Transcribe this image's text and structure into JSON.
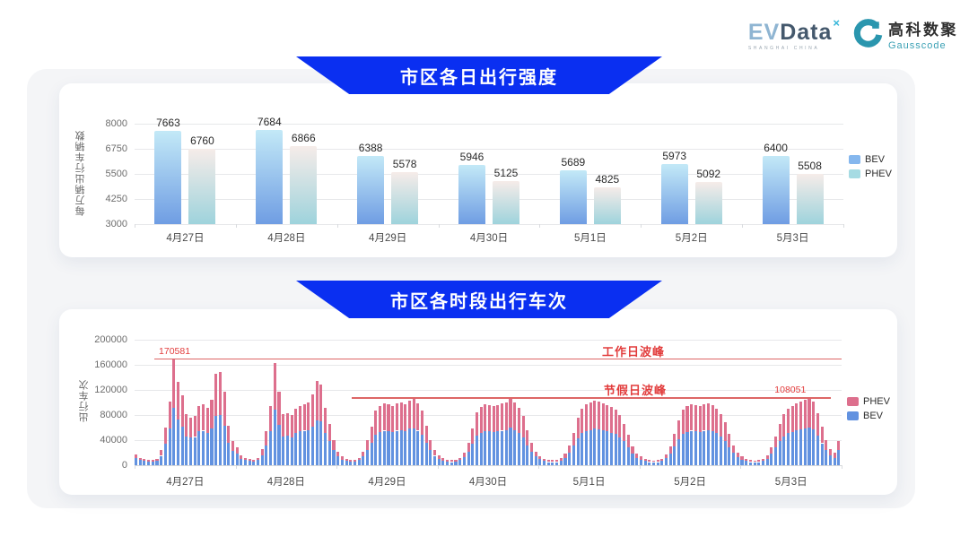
{
  "header": {
    "evdata": {
      "ev": "EV",
      "data": "Data",
      "sup": "×",
      "sub": "SHANGHAI CHINA"
    },
    "gausscode": {
      "cn": "高科数聚",
      "en": "Gausscode"
    }
  },
  "colors": {
    "banner_blue": "#0a2ff1",
    "refline_red": "#dd6666",
    "annotation_red": "#e23c3c",
    "bev_bar_blue": "#6292e0",
    "phev_bar_pink": "#dd6f8d"
  },
  "chart_data": [
    {
      "type": "bar",
      "title": "市区各日出行强度",
      "ylabel": "每万辆出行车辆数",
      "ylim": [
        3000,
        8250
      ],
      "yticks": [
        3000,
        4250,
        5500,
        6750,
        8000
      ],
      "grid": true,
      "legend_position": "right",
      "categories": [
        "4月27日",
        "4月28日",
        "4月29日",
        "4月30日",
        "5月1日",
        "5月2日",
        "5月3日"
      ],
      "series": [
        {
          "name": "BEV",
          "legend_color": "#85b7ee",
          "color_top": "#c3e9f7",
          "color_bottom": "#6f9de3",
          "values": [
            7663,
            7684,
            6388,
            5946,
            5689,
            5973,
            6400
          ]
        },
        {
          "name": "PHEV",
          "legend_color": "#a6dbe3",
          "color_top": "#f6ece9",
          "color_bottom": "#9ed3dc",
          "values": [
            6760,
            6866,
            5578,
            5125,
            4825,
            5092,
            5508
          ]
        }
      ]
    },
    {
      "type": "bar",
      "subtype": "stacked",
      "title": "市区各时段出行车次",
      "ylabel": "出行车次",
      "ylim": [
        0,
        200000
      ],
      "yticks": [
        0,
        40000,
        80000,
        120000,
        160000,
        200000
      ],
      "grid": true,
      "legend_position": "right",
      "x_day_labels": [
        "4月27日",
        "4月28日",
        "4月29日",
        "4月30日",
        "5月1日",
        "5月2日",
        "5月3日"
      ],
      "bars_per_day": 24,
      "series": [
        {
          "name": "PHEV",
          "color": "#dd6f8d",
          "values": [
            6000,
            4000,
            3000,
            2500,
            2500,
            3000,
            9000,
            25000,
            43000,
            79581,
            60000,
            50000,
            35000,
            32000,
            34000,
            41000,
            42000,
            39000,
            46000,
            67000,
            69000,
            54000,
            27000,
            15000,
            10000,
            6000,
            4000,
            3000,
            3000,
            4000,
            10000,
            23000,
            41000,
            75000,
            53000,
            36000,
            36000,
            35000,
            39000,
            41000,
            42000,
            44000,
            51000,
            62000,
            59000,
            41000,
            28000,
            15000,
            8000,
            5000,
            3000,
            3000,
            3000,
            4000,
            8000,
            16000,
            26000,
            38000,
            42000,
            44000,
            43000,
            42000,
            43000,
            44000,
            43000,
            45000,
            47000,
            44000,
            38000,
            27000,
            16000,
            9000,
            6000,
            4000,
            3000,
            3000,
            3000,
            4000,
            7000,
            14000,
            24000,
            37000,
            41000,
            43000,
            42000,
            41000,
            42000,
            43000,
            44000,
            47000,
            44000,
            40000,
            34000,
            24000,
            14000,
            8000,
            5000,
            3000,
            3000,
            3000,
            3000,
            4000,
            6000,
            12000,
            21000,
            33000,
            39000,
            43000,
            44000,
            45000,
            44000,
            43000,
            42000,
            41000,
            38000,
            35000,
            28000,
            20000,
            11000,
            6000,
            5000,
            3000,
            3000,
            2000,
            3000,
            3000,
            6000,
            11000,
            20000,
            31000,
            38000,
            42000,
            42000,
            42000,
            42000,
            42000,
            43000,
            42000,
            39000,
            36000,
            29000,
            21000,
            12000,
            7000,
            5000,
            3000,
            3000,
            2000,
            3000,
            3000,
            6000,
            10000,
            18000,
            28000,
            36000,
            39000,
            42000,
            43000,
            45000,
            46000,
            48051,
            44000,
            36000,
            27000,
            16000,
            10000,
            8000,
            14000
          ]
        },
        {
          "name": "BEV",
          "color": "#6292e0",
          "values": [
            11000,
            8000,
            7000,
            5500,
            5500,
            7000,
            15000,
            35000,
            58000,
            91000,
            73000,
            62000,
            46000,
            44000,
            45000,
            54000,
            55000,
            52000,
            58000,
            79000,
            80000,
            63000,
            36000,
            23000,
            18000,
            10000,
            8000,
            7000,
            6000,
            8000,
            16000,
            32000,
            54000,
            88000,
            64000,
            46000,
            47000,
            45000,
            51000,
            54000,
            55000,
            56000,
            62000,
            72000,
            70000,
            51000,
            38000,
            25000,
            14000,
            9000,
            7000,
            6000,
            6000,
            8000,
            14000,
            24000,
            36000,
            49000,
            53000,
            55000,
            54000,
            53000,
            55000,
            56000,
            54000,
            58000,
            59000,
            55000,
            49000,
            36000,
            24000,
            15000,
            10000,
            7000,
            6000,
            5000,
            6000,
            8000,
            13000,
            22000,
            34000,
            47000,
            52000,
            54000,
            54000,
            53000,
            54000,
            55000,
            56000,
            60000,
            56000,
            52000,
            44000,
            32000,
            22000,
            14000,
            10000,
            7000,
            5000,
            5000,
            5000,
            7000,
            12000,
            20000,
            31000,
            43000,
            51000,
            54000,
            56000,
            58000,
            57000,
            56000,
            54000,
            52000,
            50000,
            45000,
            38000,
            28000,
            19000,
            12000,
            9000,
            7000,
            5000,
            5000,
            5000,
            7000,
            11000,
            19000,
            30000,
            41000,
            50000,
            53000,
            55000,
            54000,
            53000,
            55000,
            56000,
            54000,
            51000,
            46000,
            39000,
            29000,
            20000,
            13000,
            9000,
            7000,
            5000,
            5000,
            5000,
            7000,
            10000,
            18000,
            28000,
            38000,
            46000,
            51000,
            53000,
            56000,
            57000,
            59000,
            60000,
            57000,
            47000,
            35000,
            24000,
            16000,
            12000,
            24000
          ]
        }
      ],
      "ref_lines": [
        {
          "label": "工作日波峰",
          "value": 170581
        },
        {
          "label": "节假日波峰",
          "value": 108051
        }
      ],
      "annotations": [
        {
          "text": "170581",
          "bar_index": 9,
          "dx": 0
        },
        {
          "text": "108051",
          "bar_index": 160,
          "dx": -22
        }
      ]
    }
  ]
}
